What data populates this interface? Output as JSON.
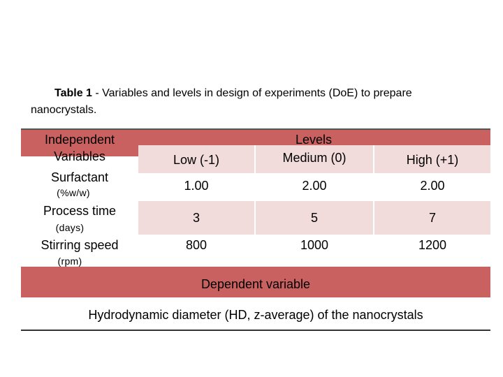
{
  "caption": {
    "label": "Table 1",
    "text": " - Variables and levels in design of experiments (DoE) to prepare",
    "text2": "nanocrystals."
  },
  "table": {
    "header_left_line1": "Independent",
    "header_left_line2": "Variables",
    "levels_title": "Levels",
    "levels": [
      "Low (-1)",
      "Medium (0)",
      "High (+1)"
    ],
    "rows": [
      {
        "name": "Surfactant",
        "unit": "(%w/w)",
        "values": [
          "1.00",
          "2.00",
          "2.00"
        ]
      },
      {
        "name": "Process time",
        "unit": "(days)",
        "values": [
          "3",
          "5",
          "7"
        ]
      },
      {
        "name": "Stirring speed",
        "unit": "(rpm)",
        "values": [
          "800",
          "1000",
          "1200"
        ]
      }
    ],
    "dependent_title": "Dependent variable",
    "dependent_value": "Hydrodynamic diameter (HD, z-average) of the nanocrystals"
  },
  "colors": {
    "header": "#c8615f",
    "band": "#f2dcdb"
  }
}
